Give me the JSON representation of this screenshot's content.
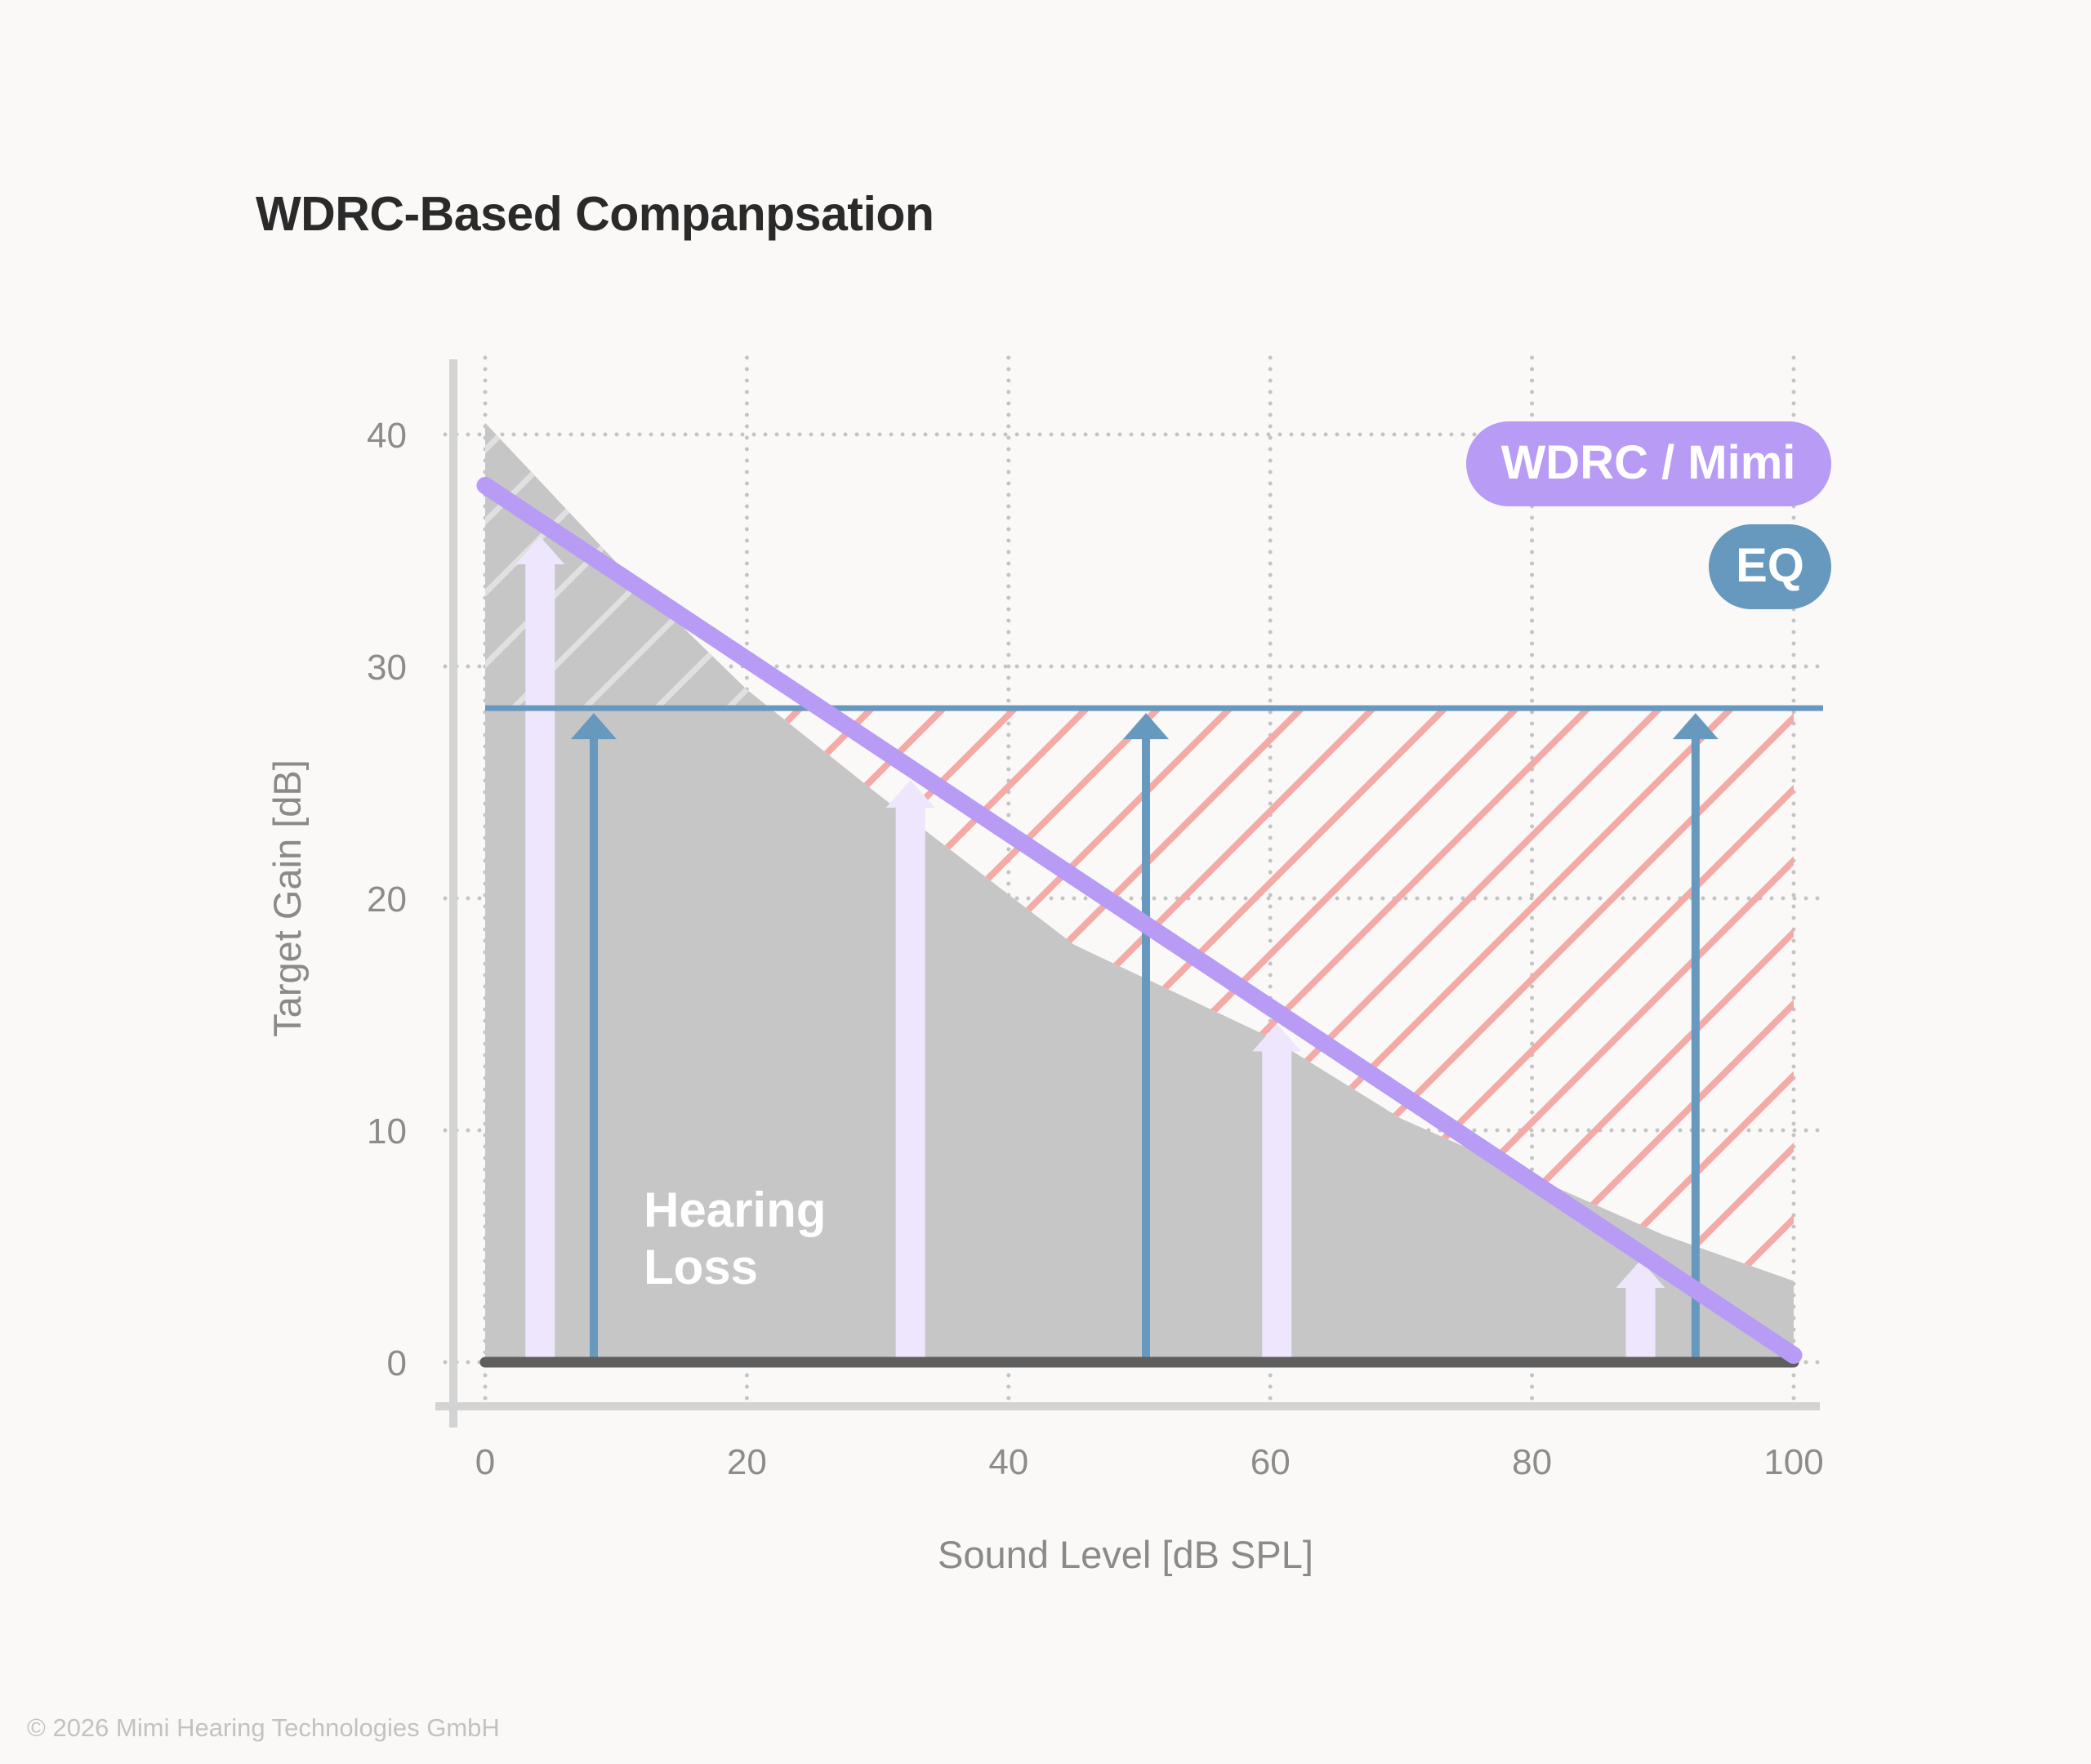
{
  "title": "WDRC-Based Companpsation",
  "copyright": "© 2026 Mimi Hearing Technologies GmbH",
  "colors": {
    "hearing_loss": "#c6c6c6",
    "wdrc": "#b89bf5",
    "eq": "#6798bd",
    "over_gain_hatch": "#f4aaa6",
    "pale_arrow": "#eee6fc",
    "baseline": "#5e5e5e",
    "grid": "#c4c4c4",
    "axis": "#d3d3d3"
  },
  "chart_data": {
    "type": "line",
    "title": "WDRC-Based Companpsation",
    "xlabel": "Sound Level [dB SPL]",
    "ylabel": "Target Gain [dB]",
    "xlim": [
      0,
      100
    ],
    "ylim": [
      0,
      40
    ],
    "x_ticks": [
      "0",
      "20",
      "40",
      "60",
      "80",
      "100"
    ],
    "y_ticks": [
      "0",
      "10",
      "20",
      "30",
      "40"
    ],
    "grid": true,
    "legend_placement": "top-right",
    "legend": [
      {
        "label": "WDRC / Mimi",
        "color": "#b89bf5"
      },
      {
        "label": "EQ",
        "color": "#6798bd"
      }
    ],
    "hearing_loss": {
      "label_line1": "Hearing",
      "label_line2": "Loss",
      "x": [
        0,
        10,
        20,
        30,
        45,
        60,
        70,
        80,
        90,
        100
      ],
      "y": [
        40.5,
        34.5,
        29,
        24.5,
        18,
        14,
        10.5,
        8,
        5.5,
        3.5
      ]
    },
    "series": [
      {
        "name": "WDRC / Mimi",
        "x": [
          0,
          100
        ],
        "y": [
          37.8,
          0.3
        ]
      },
      {
        "name": "EQ",
        "x": [
          0,
          100
        ],
        "y": [
          28.2,
          28.2
        ]
      }
    ],
    "wdrc_arrows": [
      {
        "x": 4.2,
        "y": 35.6
      },
      {
        "x": 32.5,
        "y": 25.1
      },
      {
        "x": 60.5,
        "y": 14.6
      },
      {
        "x": 88.3,
        "y": 4.4
      }
    ],
    "eq_arrows": [
      {
        "x": 8.3,
        "y": 28.2
      },
      {
        "x": 50.5,
        "y": 28.2
      },
      {
        "x": 92.5,
        "y": 28.2
      }
    ]
  }
}
